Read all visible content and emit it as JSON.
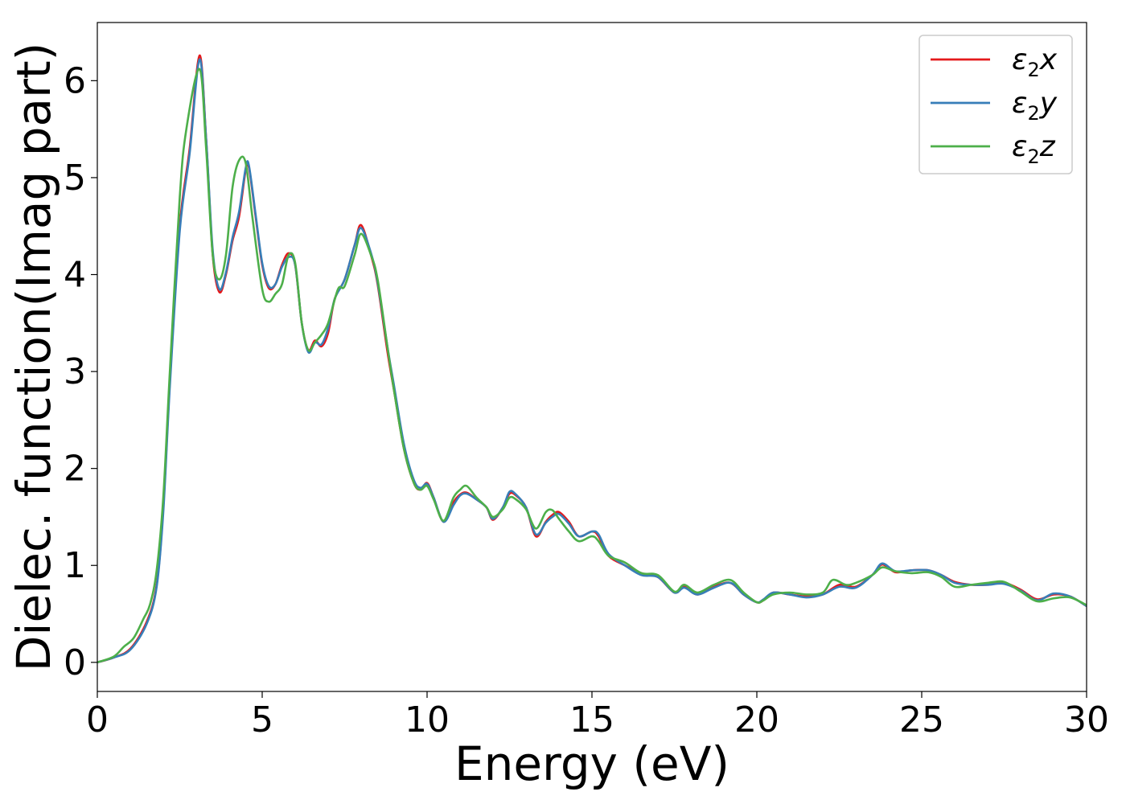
{
  "chart_data": {
    "type": "line",
    "xlabel": "Energy (eV)",
    "ylabel": "Dielec. function(Imag part)",
    "xlim": [
      0,
      30
    ],
    "ylim": [
      -0.3,
      6.6
    ],
    "xticks": [
      0,
      5,
      10,
      15,
      20,
      25,
      30
    ],
    "yticks": [
      0,
      1,
      2,
      3,
      4,
      5,
      6
    ],
    "grid": false,
    "legend_position": "top-right",
    "series": [
      {
        "name": "ε₂x",
        "legend_base": "ε",
        "legend_sub": "2",
        "legend_comp": "x",
        "color": "#e41a1c",
        "points": [
          [
            0,
            0
          ],
          [
            0.5,
            0.05
          ],
          [
            1.0,
            0.14
          ],
          [
            1.5,
            0.42
          ],
          [
            1.8,
            0.8
          ],
          [
            2.0,
            1.6
          ],
          [
            2.2,
            2.9
          ],
          [
            2.5,
            4.5
          ],
          [
            2.8,
            5.3
          ],
          [
            3.1,
            6.26
          ],
          [
            3.3,
            5.4
          ],
          [
            3.5,
            4.2
          ],
          [
            3.7,
            3.82
          ],
          [
            3.9,
            4.0
          ],
          [
            4.1,
            4.35
          ],
          [
            4.3,
            4.6
          ],
          [
            4.5,
            5.08
          ],
          [
            4.6,
            5.1
          ],
          [
            4.8,
            4.6
          ],
          [
            5.0,
            4.1
          ],
          [
            5.2,
            3.86
          ],
          [
            5.4,
            3.9
          ],
          [
            5.6,
            4.1
          ],
          [
            5.8,
            4.22
          ],
          [
            6.0,
            4.1
          ],
          [
            6.2,
            3.5
          ],
          [
            6.4,
            3.22
          ],
          [
            6.6,
            3.32
          ],
          [
            6.8,
            3.26
          ],
          [
            7.0,
            3.4
          ],
          [
            7.2,
            3.75
          ],
          [
            7.5,
            3.95
          ],
          [
            7.8,
            4.3
          ],
          [
            8.0,
            4.51
          ],
          [
            8.3,
            4.2
          ],
          [
            8.5,
            3.9
          ],
          [
            8.8,
            3.2
          ],
          [
            9.0,
            2.8
          ],
          [
            9.3,
            2.2
          ],
          [
            9.6,
            1.85
          ],
          [
            9.8,
            1.78
          ],
          [
            10.0,
            1.85
          ],
          [
            10.2,
            1.7
          ],
          [
            10.5,
            1.45
          ],
          [
            10.8,
            1.65
          ],
          [
            11.0,
            1.73
          ],
          [
            11.2,
            1.75
          ],
          [
            11.5,
            1.68
          ],
          [
            11.8,
            1.6
          ],
          [
            12.0,
            1.47
          ],
          [
            12.3,
            1.6
          ],
          [
            12.5,
            1.74
          ],
          [
            12.7,
            1.72
          ],
          [
            13.0,
            1.6
          ],
          [
            13.3,
            1.3
          ],
          [
            13.6,
            1.45
          ],
          [
            13.8,
            1.52
          ],
          [
            14.0,
            1.55
          ],
          [
            14.3,
            1.45
          ],
          [
            14.6,
            1.3
          ],
          [
            15.0,
            1.35
          ],
          [
            15.2,
            1.3
          ],
          [
            15.5,
            1.1
          ],
          [
            16.0,
            1.0
          ],
          [
            16.5,
            0.92
          ],
          [
            17.0,
            0.88
          ],
          [
            17.5,
            0.72
          ],
          [
            17.8,
            0.78
          ],
          [
            18.2,
            0.7
          ],
          [
            18.7,
            0.78
          ],
          [
            19.2,
            0.82
          ],
          [
            19.6,
            0.7
          ],
          [
            20.0,
            0.62
          ],
          [
            20.2,
            0.64
          ],
          [
            20.5,
            0.72
          ],
          [
            21.0,
            0.7
          ],
          [
            21.5,
            0.68
          ],
          [
            22.0,
            0.7
          ],
          [
            22.5,
            0.8
          ],
          [
            23.0,
            0.78
          ],
          [
            23.5,
            0.9
          ],
          [
            23.8,
            1.01
          ],
          [
            24.2,
            0.93
          ],
          [
            24.7,
            0.95
          ],
          [
            25.2,
            0.95
          ],
          [
            25.6,
            0.9
          ],
          [
            26.0,
            0.83
          ],
          [
            26.5,
            0.8
          ],
          [
            27.0,
            0.8
          ],
          [
            27.5,
            0.82
          ],
          [
            28.0,
            0.75
          ],
          [
            28.5,
            0.65
          ],
          [
            29.0,
            0.7
          ],
          [
            29.5,
            0.68
          ],
          [
            30.0,
            0.58
          ]
        ]
      },
      {
        "name": "ε₂y",
        "legend_base": "ε",
        "legend_sub": "2",
        "legend_comp": "y",
        "color": "#377eb8",
        "points": [
          [
            0,
            0
          ],
          [
            0.5,
            0.05
          ],
          [
            1.0,
            0.13
          ],
          [
            1.5,
            0.4
          ],
          [
            1.8,
            0.78
          ],
          [
            2.0,
            1.55
          ],
          [
            2.2,
            2.85
          ],
          [
            2.5,
            4.45
          ],
          [
            2.8,
            5.25
          ],
          [
            3.1,
            6.22
          ],
          [
            3.3,
            5.4
          ],
          [
            3.5,
            4.25
          ],
          [
            3.7,
            3.85
          ],
          [
            3.9,
            4.02
          ],
          [
            4.1,
            4.38
          ],
          [
            4.3,
            4.65
          ],
          [
            4.5,
            5.1
          ],
          [
            4.6,
            5.12
          ],
          [
            4.8,
            4.62
          ],
          [
            5.0,
            4.12
          ],
          [
            5.2,
            3.88
          ],
          [
            5.4,
            3.9
          ],
          [
            5.6,
            4.08
          ],
          [
            5.8,
            4.18
          ],
          [
            6.0,
            4.1
          ],
          [
            6.2,
            3.5
          ],
          [
            6.4,
            3.2
          ],
          [
            6.6,
            3.3
          ],
          [
            6.8,
            3.28
          ],
          [
            7.0,
            3.45
          ],
          [
            7.2,
            3.75
          ],
          [
            7.5,
            3.95
          ],
          [
            7.8,
            4.3
          ],
          [
            8.0,
            4.48
          ],
          [
            8.3,
            4.22
          ],
          [
            8.5,
            3.92
          ],
          [
            8.8,
            3.25
          ],
          [
            9.0,
            2.85
          ],
          [
            9.3,
            2.25
          ],
          [
            9.6,
            1.88
          ],
          [
            9.8,
            1.8
          ],
          [
            10.0,
            1.84
          ],
          [
            10.2,
            1.7
          ],
          [
            10.5,
            1.45
          ],
          [
            10.8,
            1.62
          ],
          [
            11.0,
            1.72
          ],
          [
            11.2,
            1.74
          ],
          [
            11.5,
            1.68
          ],
          [
            11.8,
            1.6
          ],
          [
            12.0,
            1.48
          ],
          [
            12.3,
            1.6
          ],
          [
            12.5,
            1.76
          ],
          [
            12.7,
            1.73
          ],
          [
            13.0,
            1.6
          ],
          [
            13.3,
            1.32
          ],
          [
            13.6,
            1.44
          ],
          [
            13.8,
            1.5
          ],
          [
            14.0,
            1.53
          ],
          [
            14.3,
            1.43
          ],
          [
            14.6,
            1.3
          ],
          [
            15.0,
            1.35
          ],
          [
            15.2,
            1.32
          ],
          [
            15.5,
            1.12
          ],
          [
            16.0,
            1.0
          ],
          [
            16.5,
            0.9
          ],
          [
            17.0,
            0.88
          ],
          [
            17.5,
            0.72
          ],
          [
            17.8,
            0.77
          ],
          [
            18.2,
            0.7
          ],
          [
            18.7,
            0.77
          ],
          [
            19.2,
            0.82
          ],
          [
            19.6,
            0.7
          ],
          [
            20.0,
            0.62
          ],
          [
            20.2,
            0.65
          ],
          [
            20.5,
            0.72
          ],
          [
            21.0,
            0.7
          ],
          [
            21.5,
            0.67
          ],
          [
            22.0,
            0.7
          ],
          [
            22.5,
            0.78
          ],
          [
            23.0,
            0.77
          ],
          [
            23.5,
            0.9
          ],
          [
            23.8,
            1.02
          ],
          [
            24.2,
            0.94
          ],
          [
            24.7,
            0.95
          ],
          [
            25.2,
            0.95
          ],
          [
            25.6,
            0.9
          ],
          [
            26.0,
            0.82
          ],
          [
            26.5,
            0.8
          ],
          [
            27.0,
            0.8
          ],
          [
            27.5,
            0.81
          ],
          [
            28.0,
            0.74
          ],
          [
            28.5,
            0.64
          ],
          [
            29.0,
            0.71
          ],
          [
            29.5,
            0.68
          ],
          [
            30.0,
            0.58
          ]
        ]
      },
      {
        "name": "ε₂z",
        "legend_base": "ε",
        "legend_sub": "2",
        "legend_comp": "z",
        "color": "#4daf4a",
        "points": [
          [
            0,
            0
          ],
          [
            0.5,
            0.06
          ],
          [
            0.8,
            0.16
          ],
          [
            1.1,
            0.25
          ],
          [
            1.4,
            0.45
          ],
          [
            1.6,
            0.6
          ],
          [
            1.8,
            0.95
          ],
          [
            2.0,
            1.7
          ],
          [
            2.2,
            3.0
          ],
          [
            2.5,
            4.8
          ],
          [
            2.7,
            5.5
          ],
          [
            3.1,
            6.12
          ],
          [
            3.3,
            5.3
          ],
          [
            3.5,
            4.2
          ],
          [
            3.7,
            3.95
          ],
          [
            3.9,
            4.2
          ],
          [
            4.1,
            4.9
          ],
          [
            4.3,
            5.18
          ],
          [
            4.5,
            5.15
          ],
          [
            4.7,
            4.6
          ],
          [
            5.0,
            3.85
          ],
          [
            5.2,
            3.72
          ],
          [
            5.4,
            3.8
          ],
          [
            5.6,
            3.9
          ],
          [
            5.8,
            4.2
          ],
          [
            6.0,
            4.12
          ],
          [
            6.2,
            3.5
          ],
          [
            6.4,
            3.22
          ],
          [
            6.6,
            3.3
          ],
          [
            6.8,
            3.38
          ],
          [
            7.0,
            3.5
          ],
          [
            7.3,
            3.85
          ],
          [
            7.5,
            3.88
          ],
          [
            7.8,
            4.2
          ],
          [
            8.0,
            4.42
          ],
          [
            8.3,
            4.2
          ],
          [
            8.5,
            3.95
          ],
          [
            8.8,
            3.25
          ],
          [
            9.0,
            2.8
          ],
          [
            9.3,
            2.2
          ],
          [
            9.6,
            1.85
          ],
          [
            9.8,
            1.78
          ],
          [
            10.0,
            1.82
          ],
          [
            10.2,
            1.68
          ],
          [
            10.5,
            1.46
          ],
          [
            10.8,
            1.7
          ],
          [
            11.0,
            1.78
          ],
          [
            11.2,
            1.82
          ],
          [
            11.5,
            1.7
          ],
          [
            11.8,
            1.6
          ],
          [
            12.0,
            1.5
          ],
          [
            12.3,
            1.58
          ],
          [
            12.5,
            1.7
          ],
          [
            12.7,
            1.68
          ],
          [
            13.0,
            1.58
          ],
          [
            13.3,
            1.38
          ],
          [
            13.6,
            1.55
          ],
          [
            13.8,
            1.57
          ],
          [
            14.0,
            1.48
          ],
          [
            14.3,
            1.35
          ],
          [
            14.6,
            1.25
          ],
          [
            15.0,
            1.3
          ],
          [
            15.2,
            1.25
          ],
          [
            15.5,
            1.1
          ],
          [
            16.0,
            1.03
          ],
          [
            16.5,
            0.92
          ],
          [
            17.0,
            0.9
          ],
          [
            17.5,
            0.73
          ],
          [
            17.8,
            0.8
          ],
          [
            18.2,
            0.72
          ],
          [
            18.7,
            0.8
          ],
          [
            19.2,
            0.85
          ],
          [
            19.6,
            0.72
          ],
          [
            20.0,
            0.62
          ],
          [
            20.2,
            0.64
          ],
          [
            20.5,
            0.7
          ],
          [
            21.0,
            0.72
          ],
          [
            21.5,
            0.7
          ],
          [
            22.0,
            0.72
          ],
          [
            22.3,
            0.85
          ],
          [
            22.7,
            0.8
          ],
          [
            23.0,
            0.82
          ],
          [
            23.5,
            0.9
          ],
          [
            23.8,
            0.98
          ],
          [
            24.2,
            0.94
          ],
          [
            24.7,
            0.92
          ],
          [
            25.2,
            0.93
          ],
          [
            25.6,
            0.88
          ],
          [
            26.0,
            0.78
          ],
          [
            26.5,
            0.8
          ],
          [
            27.0,
            0.82
          ],
          [
            27.5,
            0.83
          ],
          [
            28.0,
            0.73
          ],
          [
            28.5,
            0.63
          ],
          [
            29.0,
            0.66
          ],
          [
            29.5,
            0.67
          ],
          [
            30.0,
            0.59
          ]
        ]
      }
    ]
  }
}
